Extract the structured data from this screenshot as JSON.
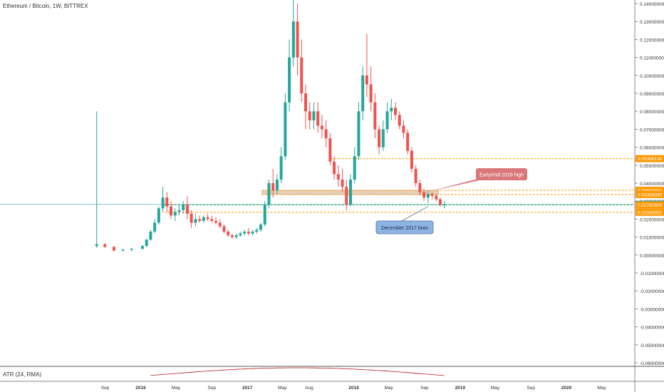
{
  "header": {
    "symbol_title": "Ethereum / Bitcoin, 1W, BITTREX"
  },
  "atr": {
    "title": "ATR (24, RMA)"
  },
  "colors": {
    "up": "#26a69a",
    "down": "#ef5350",
    "orange": "#ff9800",
    "current_line": "#59b8c6",
    "green_line": "#4caf50",
    "callout_red": "#d9777a",
    "callout_blue": "#8db3e2",
    "atr_line": "#b71c1c"
  },
  "chart_data": {
    "type": "candlestick",
    "title": "Ethereum / Bitcoin, 1W, BITTREX",
    "ylim": [
      -0.06,
      0.14
    ],
    "y_ticks": [
      "0.14000000",
      "0.13000000",
      "0.12000000",
      "0.11000000",
      "0.10000000",
      "0.09000000",
      "0.08000000",
      "0.07000000",
      "0.06000000",
      "0.05000000",
      "0.04000000",
      "0.03000000",
      "0.02000000",
      "0.01000000",
      "0.00000000",
      "-0.01000000",
      "-0.02000000",
      "-0.03000000",
      "-0.04000000",
      "-0.05000000",
      "-0.06000000"
    ],
    "x_ticks": [
      "Sep",
      "2016",
      "May",
      "Sep",
      "2017",
      "May",
      "Aug",
      "2018",
      "May",
      "Sep",
      "2019",
      "May",
      "Sep",
      "2020",
      "May"
    ],
    "x_tick_dates": [
      "2015-09-01",
      "2016-01-01",
      "2016-05-01",
      "2016-09-01",
      "2017-01-01",
      "2017-05-01",
      "2017-08-01",
      "2018-01-01",
      "2018-05-01",
      "2018-09-01",
      "2019-01-01",
      "2019-05-01",
      "2019-09-01",
      "2020-01-01",
      "2020-05-01"
    ],
    "x_range": [
      "2015-07-20",
      "2020-08-20"
    ],
    "series": [
      {
        "ohlc": [
          [
            "2015-08-03",
            0.005,
            0.08,
            0.004,
            0.006
          ],
          [
            "2015-08-31",
            0.006,
            0.0065,
            0.004,
            0.0045
          ],
          [
            "2015-10-01",
            0.0045,
            0.005,
            0.002,
            0.0025
          ],
          [
            "2015-11-01",
            0.0025,
            0.0035,
            0.002,
            0.003
          ],
          [
            "2015-12-01",
            0.003,
            0.004,
            0.002,
            0.0035
          ],
          [
            "2016-01-07",
            0.0035,
            0.0055,
            0.003,
            0.005
          ],
          [
            "2016-01-21",
            0.005,
            0.009,
            0.0045,
            0.0085
          ],
          [
            "2016-02-04",
            0.0085,
            0.014,
            0.008,
            0.013
          ],
          [
            "2016-02-18",
            0.013,
            0.02,
            0.012,
            0.018
          ],
          [
            "2016-03-03",
            0.018,
            0.027,
            0.017,
            0.026
          ],
          [
            "2016-03-17",
            0.026,
            0.038,
            0.024,
            0.032
          ],
          [
            "2016-03-31",
            0.032,
            0.035,
            0.024,
            0.027
          ],
          [
            "2016-04-14",
            0.027,
            0.03,
            0.02,
            0.022
          ],
          [
            "2016-04-28",
            0.022,
            0.026,
            0.019,
            0.024
          ],
          [
            "2016-05-12",
            0.024,
            0.028,
            0.022,
            0.025
          ],
          [
            "2016-05-26",
            0.025,
            0.03,
            0.023,
            0.028
          ],
          [
            "2016-06-09",
            0.028,
            0.033,
            0.02,
            0.023
          ],
          [
            "2016-06-23",
            0.023,
            0.025,
            0.015,
            0.018
          ],
          [
            "2016-07-07",
            0.018,
            0.023,
            0.016,
            0.02
          ],
          [
            "2016-07-21",
            0.02,
            0.022,
            0.018,
            0.019
          ],
          [
            "2016-08-04",
            0.019,
            0.022,
            0.018,
            0.021
          ],
          [
            "2016-08-18",
            0.021,
            0.023,
            0.019,
            0.02
          ],
          [
            "2016-09-01",
            0.02,
            0.022,
            0.018,
            0.019
          ],
          [
            "2016-09-15",
            0.019,
            0.021,
            0.017,
            0.018
          ],
          [
            "2016-09-29",
            0.018,
            0.02,
            0.015,
            0.016
          ],
          [
            "2016-10-13",
            0.016,
            0.017,
            0.012,
            0.013
          ],
          [
            "2016-10-27",
            0.013,
            0.014,
            0.01,
            0.011
          ],
          [
            "2016-11-10",
            0.011,
            0.012,
            0.009,
            0.01
          ],
          [
            "2016-11-24",
            0.01,
            0.012,
            0.009,
            0.011
          ],
          [
            "2016-12-08",
            0.011,
            0.013,
            0.01,
            0.012
          ],
          [
            "2016-12-22",
            0.012,
            0.014,
            0.011,
            0.013
          ],
          [
            "2017-01-05",
            0.013,
            0.015,
            0.011,
            0.012
          ],
          [
            "2017-01-19",
            0.012,
            0.014,
            0.011,
            0.013
          ],
          [
            "2017-02-02",
            0.013,
            0.015,
            0.012,
            0.014
          ],
          [
            "2017-02-16",
            0.014,
            0.018,
            0.013,
            0.017
          ],
          [
            "2017-03-02",
            0.017,
            0.03,
            0.016,
            0.028
          ],
          [
            "2017-03-16",
            0.028,
            0.042,
            0.026,
            0.04
          ],
          [
            "2017-03-30",
            0.04,
            0.048,
            0.032,
            0.036
          ],
          [
            "2017-04-13",
            0.036,
            0.045,
            0.034,
            0.042
          ],
          [
            "2017-04-27",
            0.042,
            0.06,
            0.04,
            0.055
          ],
          [
            "2017-05-11",
            0.055,
            0.09,
            0.053,
            0.085
          ],
          [
            "2017-05-25",
            0.085,
            0.12,
            0.08,
            0.11
          ],
          [
            "2017-06-08",
            0.11,
            0.142,
            0.105,
            0.13
          ],
          [
            "2017-06-22",
            0.13,
            0.14,
            0.1,
            0.11
          ],
          [
            "2017-07-06",
            0.11,
            0.12,
            0.085,
            0.09
          ],
          [
            "2017-07-20",
            0.09,
            0.095,
            0.07,
            0.08
          ],
          [
            "2017-08-03",
            0.08,
            0.085,
            0.07,
            0.075
          ],
          [
            "2017-08-17",
            0.075,
            0.085,
            0.07,
            0.08
          ],
          [
            "2017-08-31",
            0.08,
            0.085,
            0.068,
            0.072
          ],
          [
            "2017-09-14",
            0.072,
            0.078,
            0.065,
            0.07
          ],
          [
            "2017-09-28",
            0.07,
            0.075,
            0.06,
            0.065
          ],
          [
            "2017-10-12",
            0.065,
            0.068,
            0.05,
            0.052
          ],
          [
            "2017-10-26",
            0.052,
            0.055,
            0.042,
            0.045
          ],
          [
            "2017-11-09",
            0.045,
            0.05,
            0.038,
            0.042
          ],
          [
            "2017-11-23",
            0.042,
            0.048,
            0.035,
            0.038
          ],
          [
            "2017-12-07",
            0.038,
            0.042,
            0.025,
            0.028
          ],
          [
            "2017-12-21",
            0.028,
            0.045,
            0.027,
            0.042
          ],
          [
            "2018-01-04",
            0.042,
            0.06,
            0.04,
            0.055
          ],
          [
            "2018-01-18",
            0.055,
            0.085,
            0.053,
            0.08
          ],
          [
            "2018-02-01",
            0.08,
            0.105,
            0.075,
            0.1
          ],
          [
            "2018-02-15",
            0.1,
            0.123,
            0.088,
            0.095
          ],
          [
            "2018-03-01",
            0.095,
            0.105,
            0.08,
            0.085
          ],
          [
            "2018-03-15",
            0.085,
            0.09,
            0.065,
            0.07
          ],
          [
            "2018-03-29",
            0.07,
            0.072,
            0.056,
            0.06
          ],
          [
            "2018-04-12",
            0.06,
            0.075,
            0.058,
            0.07
          ],
          [
            "2018-04-26",
            0.07,
            0.085,
            0.068,
            0.08
          ],
          [
            "2018-05-10",
            0.08,
            0.087,
            0.075,
            0.082
          ],
          [
            "2018-05-24",
            0.082,
            0.085,
            0.075,
            0.078
          ],
          [
            "2018-06-07",
            0.078,
            0.08,
            0.07,
            0.072
          ],
          [
            "2018-06-21",
            0.072,
            0.075,
            0.065,
            0.068
          ],
          [
            "2018-07-05",
            0.068,
            0.07,
            0.056,
            0.058
          ],
          [
            "2018-07-19",
            0.058,
            0.06,
            0.046,
            0.048
          ],
          [
            "2018-08-02",
            0.048,
            0.05,
            0.038,
            0.04
          ],
          [
            "2018-08-16",
            0.04,
            0.042,
            0.033,
            0.035
          ],
          [
            "2018-08-30",
            0.035,
            0.037,
            0.03,
            0.032
          ],
          [
            "2018-09-13",
            0.032,
            0.036,
            0.029,
            0.034
          ],
          [
            "2018-09-27",
            0.034,
            0.035,
            0.031,
            0.033
          ],
          [
            "2018-10-11",
            0.033,
            0.034,
            0.03,
            0.031
          ],
          [
            "2018-10-25",
            0.031,
            0.032,
            0.027,
            0.028
          ],
          [
            "2018-11-08",
            0.028,
            0.03,
            0.026,
            0.0282
          ]
        ]
      }
    ],
    "price_labels": [
      "0.05366138",
      "0.03603464",
      "0.03368599",
      "0.02820733",
      "0.02782608",
      "0.02380353"
    ],
    "levels": {
      "resistance": 0.05366138,
      "zone_top": 0.03603464,
      "zone_bottom": 0.03368599,
      "current": 0.02820733,
      "green": 0.02782608,
      "december_2017_lows": 0.02380353
    },
    "annotations": [
      "Early/mid 2016 high",
      "December 2017 lows"
    ],
    "atr": {
      "title": "ATR (24, RMA)"
    }
  }
}
